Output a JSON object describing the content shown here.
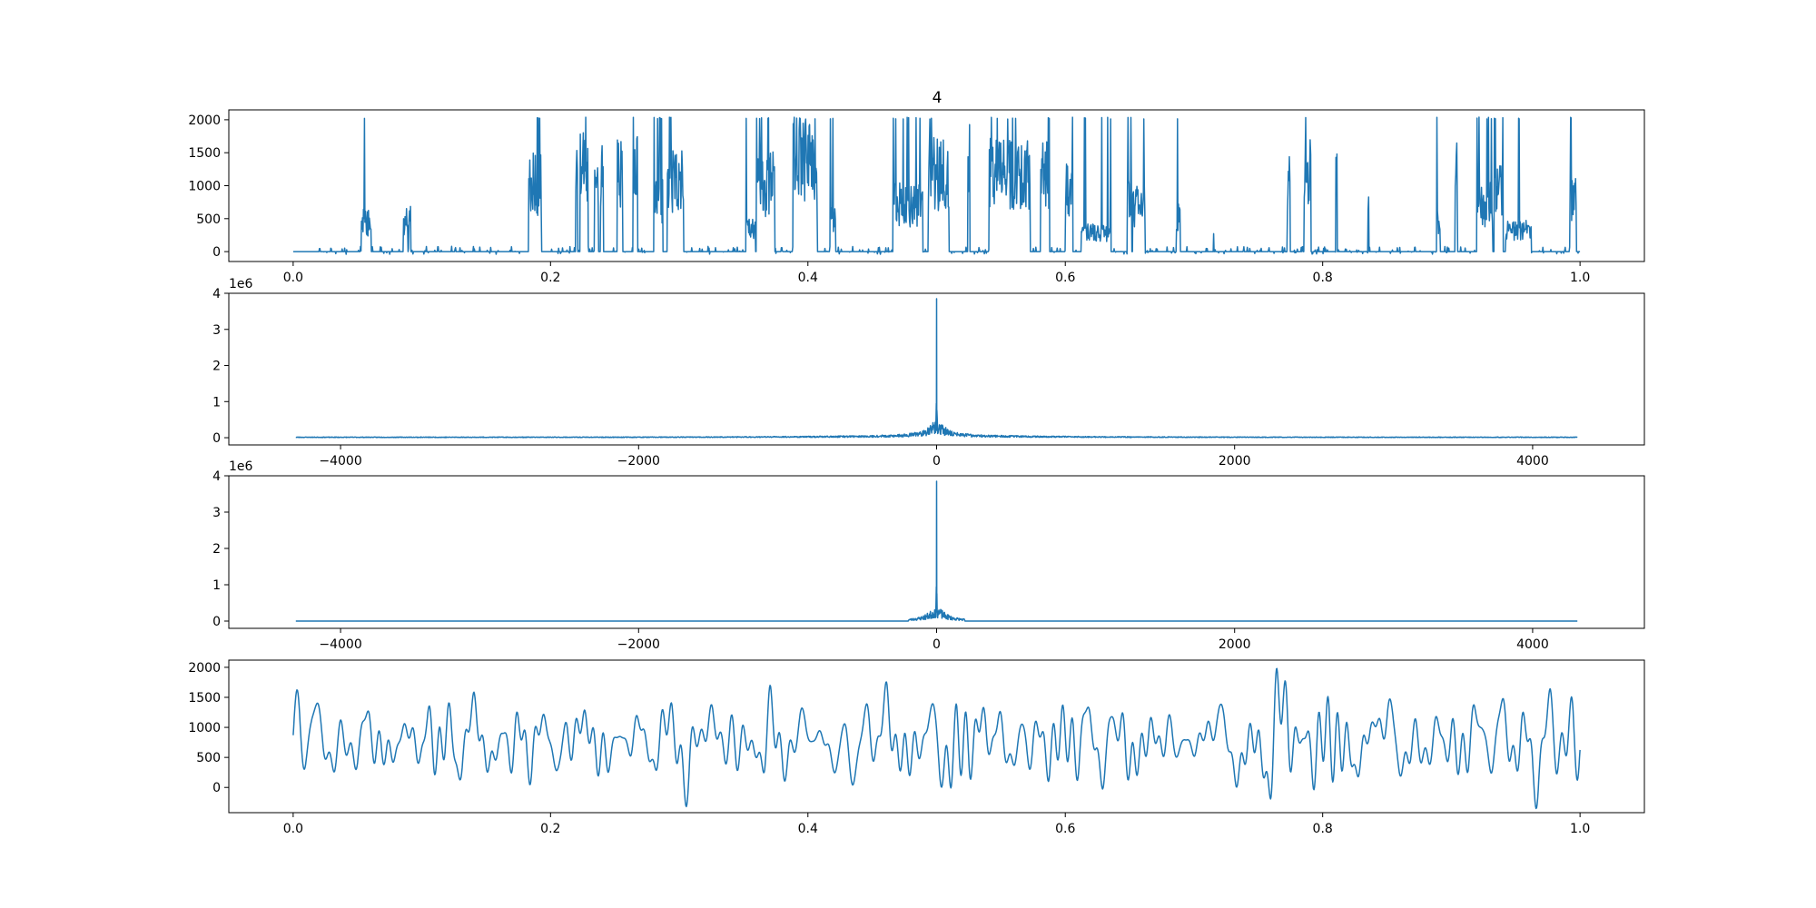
{
  "figure": {
    "title": "4"
  },
  "chart_data": [
    {
      "type": "line",
      "title": "4",
      "xlabel": "",
      "ylabel": "",
      "xlim": [
        -0.05,
        1.05
      ],
      "ylim": [
        -150,
        2150
      ],
      "x_ticks": [
        0.0,
        0.2,
        0.4,
        0.6,
        0.8,
        1.0
      ],
      "x_tick_labels": [
        "0.0",
        "0.2",
        "0.4",
        "0.6",
        "0.8",
        "1.0"
      ],
      "y_ticks": [
        0,
        500,
        1000,
        1500,
        2000
      ],
      "y_tick_labels": [
        "0",
        "500",
        "1000",
        "1500",
        "2000"
      ],
      "grid": false,
      "color": "#1f77b4",
      "x_range": [
        0.0,
        1.0
      ],
      "y_range": [
        0,
        2040
      ]
    },
    {
      "type": "line",
      "title": "",
      "xlabel": "",
      "ylabel": "",
      "y_offset_label": "1e6",
      "xlim": [
        -4750,
        4750
      ],
      "ylim": [
        -0.2,
        4.0
      ],
      "x_ticks": [
        -4000,
        -2000,
        0,
        2000,
        4000
      ],
      "x_tick_labels": [
        "−4000",
        "−2000",
        "0",
        "2000",
        "4000"
      ],
      "y_ticks": [
        0,
        1,
        2,
        3,
        4
      ],
      "y_tick_labels": [
        "0",
        "1",
        "2",
        "3",
        "4"
      ],
      "grid": false,
      "color": "#1f77b4",
      "x_range": [
        -4300,
        4300
      ],
      "peak": {
        "x": 0,
        "y": 3.85
      },
      "secondary_peak": 0.95,
      "central_band_halfwidth": 200,
      "noise_floor": 0.02
    },
    {
      "type": "line",
      "title": "",
      "xlabel": "",
      "ylabel": "",
      "y_offset_label": "1e6",
      "xlim": [
        -4750,
        4750
      ],
      "ylim": [
        -0.2,
        4.0
      ],
      "x_ticks": [
        -4000,
        -2000,
        0,
        2000,
        4000
      ],
      "x_tick_labels": [
        "−4000",
        "−2000",
        "0",
        "2000",
        "4000"
      ],
      "y_ticks": [
        0,
        1,
        2,
        3,
        4
      ],
      "y_tick_labels": [
        "0",
        "1",
        "2",
        "3",
        "4"
      ],
      "grid": false,
      "color": "#1f77b4",
      "x_range": [
        -4300,
        4300
      ],
      "peak": {
        "x": 0,
        "y": 3.85
      },
      "secondary_peak": 0.95,
      "cutoff": 190,
      "noise_floor": 0
    },
    {
      "type": "line",
      "title": "",
      "xlabel": "",
      "ylabel": "",
      "xlim": [
        -0.05,
        1.05
      ],
      "ylim": [
        -420,
        2120
      ],
      "x_ticks": [
        0.0,
        0.2,
        0.4,
        0.6,
        0.8,
        1.0
      ],
      "x_tick_labels": [
        "0.0",
        "0.2",
        "0.4",
        "0.6",
        "0.8",
        "1.0"
      ],
      "y_ticks": [
        0,
        500,
        1000,
        1500,
        2000
      ],
      "y_tick_labels": [
        "0",
        "500",
        "1000",
        "1500",
        "2000"
      ],
      "grid": false,
      "color": "#1f77b4",
      "x_range": [
        0.0,
        1.0
      ],
      "y_range": [
        -350,
        1980
      ]
    }
  ]
}
